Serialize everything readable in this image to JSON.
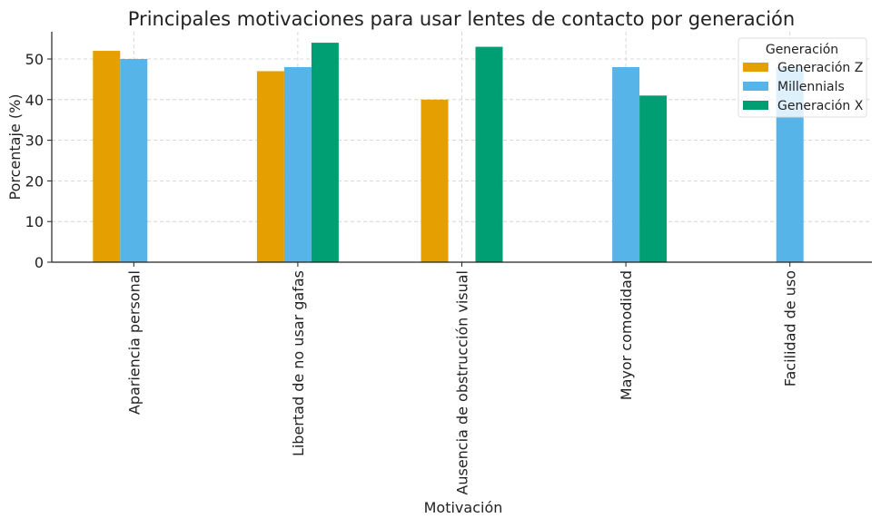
{
  "chart_data": {
    "type": "bar",
    "title": "Principales motivaciones para usar lentes de contacto por generación",
    "xlabel": "Motivación",
    "ylabel": "Porcentaje (%)",
    "ylim": [
      0,
      56.7
    ],
    "yticks": [
      0,
      10,
      20,
      30,
      40,
      50
    ],
    "grid": true,
    "categories": [
      "Apariencia personal",
      "Libertad de no usar gafas",
      "Ausencia de obstrucción visual",
      "Mayor comodidad",
      "Facilidad de uso"
    ],
    "series": [
      {
        "name": "Generación Z",
        "color": "#E69F00",
        "values": [
          52,
          47,
          40,
          null,
          null
        ]
      },
      {
        "name": "Millennials",
        "color": "#56B4E9",
        "values": [
          50,
          48,
          null,
          48,
          48
        ]
      },
      {
        "name": "Generación X",
        "color": "#009E73",
        "values": [
          null,
          54,
          53,
          41,
          null
        ]
      }
    ],
    "legend": {
      "title": "Generación",
      "placement": "top-right"
    }
  }
}
